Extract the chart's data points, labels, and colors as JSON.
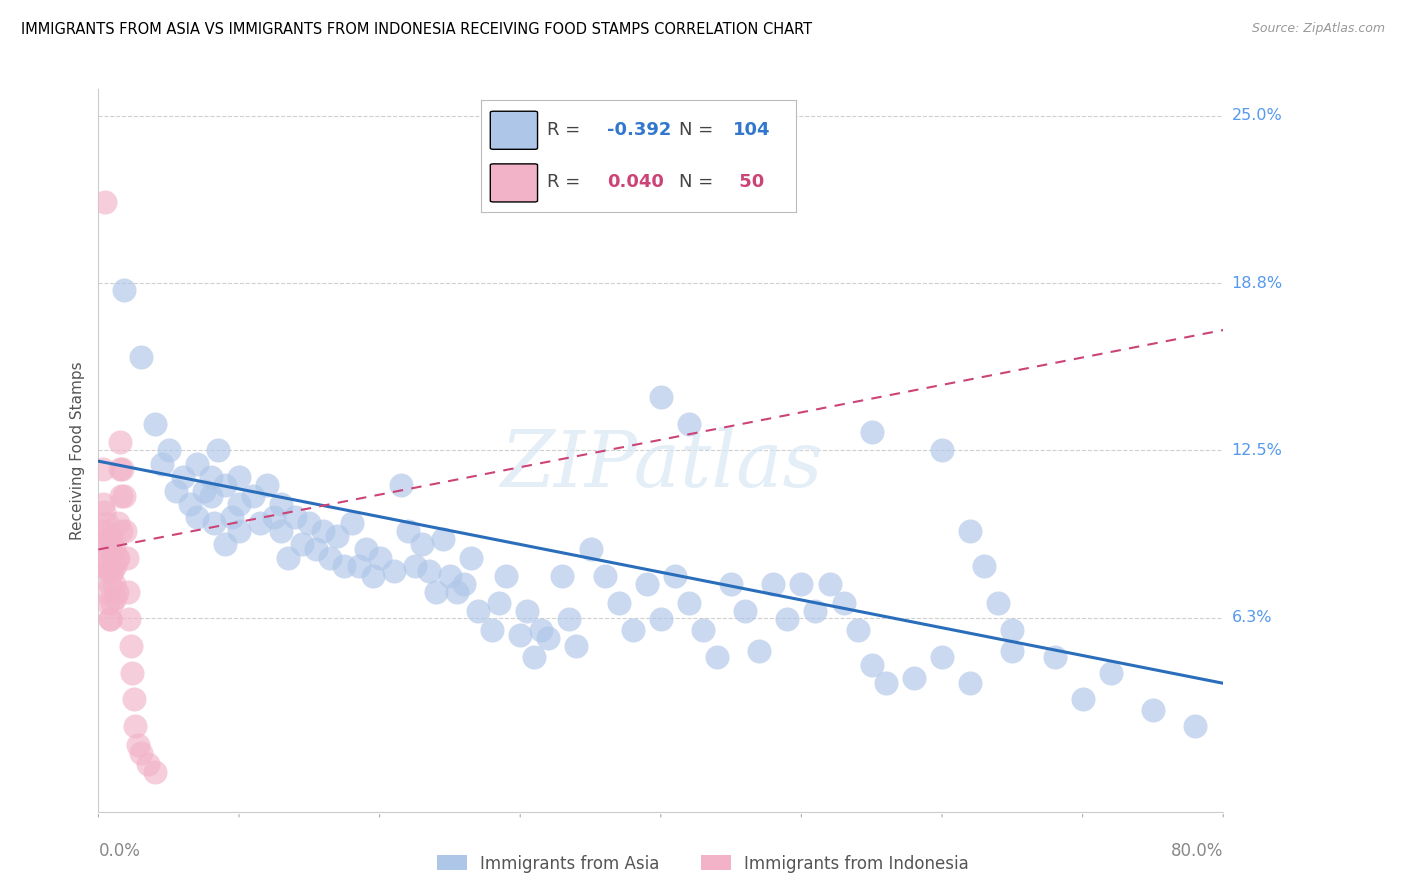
{
  "title": "IMMIGRANTS FROM ASIA VS IMMIGRANTS FROM INDONESIA RECEIVING FOOD STAMPS CORRELATION CHART",
  "source": "Source: ZipAtlas.com",
  "ylabel": "Receiving Food Stamps",
  "xlim": [
    0.0,
    0.8
  ],
  "ylim": [
    -0.01,
    0.26
  ],
  "legend_blue_R": "-0.392",
  "legend_blue_N": "104",
  "legend_pink_R": "0.040",
  "legend_pink_N": "50",
  "legend_label_blue": "Immigrants from Asia",
  "legend_label_pink": "Immigrants from Indonesia",
  "blue_color": "#aec6e8",
  "pink_color": "#f2b3c8",
  "blue_line_color": "#2a6ebb",
  "pink_line_color": "#cc4477",
  "watermark": "ZIPatlas",
  "blue_scatter_x": [
    0.018,
    0.03,
    0.04,
    0.045,
    0.05,
    0.055,
    0.06,
    0.065,
    0.07,
    0.075,
    0.07,
    0.08,
    0.08,
    0.082,
    0.085,
    0.09,
    0.095,
    0.09,
    0.1,
    0.1,
    0.1,
    0.11,
    0.115,
    0.12,
    0.125,
    0.13,
    0.13,
    0.135,
    0.14,
    0.145,
    0.15,
    0.155,
    0.16,
    0.165,
    0.17,
    0.175,
    0.18,
    0.185,
    0.19,
    0.195,
    0.2,
    0.21,
    0.215,
    0.22,
    0.225,
    0.23,
    0.235,
    0.24,
    0.245,
    0.25,
    0.255,
    0.26,
    0.265,
    0.27,
    0.28,
    0.285,
    0.29,
    0.3,
    0.305,
    0.31,
    0.315,
    0.32,
    0.33,
    0.335,
    0.34,
    0.35,
    0.36,
    0.37,
    0.38,
    0.39,
    0.4,
    0.41,
    0.42,
    0.43,
    0.44,
    0.45,
    0.46,
    0.47,
    0.48,
    0.49,
    0.5,
    0.51,
    0.52,
    0.53,
    0.54,
    0.55,
    0.56,
    0.58,
    0.6,
    0.62,
    0.65,
    0.68,
    0.7,
    0.72,
    0.75,
    0.78,
    0.4,
    0.42,
    0.55,
    0.6,
    0.62,
    0.63,
    0.64,
    0.65
  ],
  "blue_scatter_y": [
    0.185,
    0.16,
    0.135,
    0.12,
    0.125,
    0.11,
    0.115,
    0.105,
    0.12,
    0.11,
    0.1,
    0.115,
    0.108,
    0.098,
    0.125,
    0.112,
    0.1,
    0.09,
    0.115,
    0.105,
    0.095,
    0.108,
    0.098,
    0.112,
    0.1,
    0.105,
    0.095,
    0.085,
    0.1,
    0.09,
    0.098,
    0.088,
    0.095,
    0.085,
    0.093,
    0.082,
    0.098,
    0.082,
    0.088,
    0.078,
    0.085,
    0.08,
    0.112,
    0.095,
    0.082,
    0.09,
    0.08,
    0.072,
    0.092,
    0.078,
    0.072,
    0.075,
    0.085,
    0.065,
    0.058,
    0.068,
    0.078,
    0.056,
    0.065,
    0.048,
    0.058,
    0.055,
    0.078,
    0.062,
    0.052,
    0.088,
    0.078,
    0.068,
    0.058,
    0.075,
    0.062,
    0.078,
    0.068,
    0.058,
    0.048,
    0.075,
    0.065,
    0.05,
    0.075,
    0.062,
    0.075,
    0.065,
    0.075,
    0.068,
    0.058,
    0.045,
    0.038,
    0.04,
    0.048,
    0.038,
    0.058,
    0.048,
    0.032,
    0.042,
    0.028,
    0.022,
    0.145,
    0.135,
    0.132,
    0.125,
    0.095,
    0.082,
    0.068,
    0.05
  ],
  "pink_scatter_x": [
    0.002,
    0.002,
    0.003,
    0.003,
    0.004,
    0.004,
    0.005,
    0.005,
    0.005,
    0.006,
    0.006,
    0.007,
    0.007,
    0.007,
    0.008,
    0.008,
    0.008,
    0.009,
    0.009,
    0.01,
    0.01,
    0.01,
    0.011,
    0.011,
    0.012,
    0.012,
    0.013,
    0.013,
    0.014,
    0.014,
    0.015,
    0.015,
    0.016,
    0.016,
    0.017,
    0.018,
    0.019,
    0.02,
    0.021,
    0.022,
    0.023,
    0.024,
    0.025,
    0.026,
    0.028,
    0.03,
    0.035,
    0.04,
    0.005,
    0.008
  ],
  "pink_scatter_y": [
    0.095,
    0.082,
    0.118,
    0.105,
    0.102,
    0.09,
    0.095,
    0.082,
    0.072,
    0.098,
    0.085,
    0.092,
    0.08,
    0.068,
    0.088,
    0.075,
    0.062,
    0.092,
    0.08,
    0.092,
    0.08,
    0.068,
    0.088,
    0.075,
    0.082,
    0.07,
    0.085,
    0.072,
    0.098,
    0.085,
    0.128,
    0.118,
    0.108,
    0.095,
    0.118,
    0.108,
    0.095,
    0.085,
    0.072,
    0.062,
    0.052,
    0.042,
    0.032,
    0.022,
    0.015,
    0.012,
    0.008,
    0.005,
    0.218,
    0.062
  ],
  "blue_trend_x": [
    0.0,
    0.8
  ],
  "blue_trend_y": [
    0.121,
    0.038
  ],
  "pink_trend_x": [
    0.0,
    0.8
  ],
  "pink_trend_y": [
    0.088,
    0.17
  ],
  "ytick_positions": [
    0.0,
    0.0625,
    0.125,
    0.1875,
    0.25
  ],
  "ytick_labels": [
    "",
    "6.3%",
    "12.5%",
    "18.8%",
    "25.0%"
  ]
}
